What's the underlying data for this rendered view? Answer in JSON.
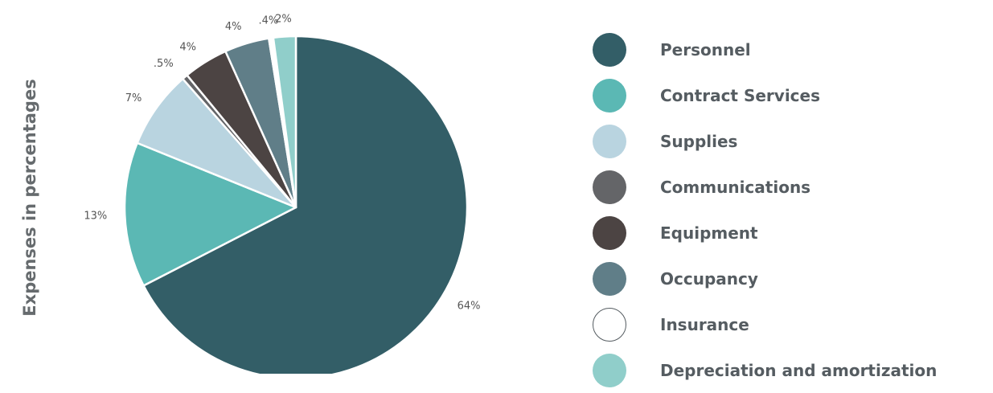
{
  "chart_data": {
    "type": "pie",
    "ylabel": "Expenses in percentages",
    "series": [
      {
        "name": "Personnel",
        "value": 64,
        "label": "64%",
        "color": "#335e67"
      },
      {
        "name": "Contract Services",
        "value": 13,
        "label": "13%",
        "color": "#5bb8b4"
      },
      {
        "name": "Supplies",
        "value": 7,
        "label": "7%",
        "color": "#b9d4e0"
      },
      {
        "name": "Communications",
        "value": 0.5,
        "label": ".5%",
        "color": "#646568"
      },
      {
        "name": "Equipment",
        "value": 4,
        "label": "4%",
        "color": "#4c4443"
      },
      {
        "name": "Occupancy",
        "value": 4,
        "label": "4%",
        "color": "#607e88"
      },
      {
        "name": "Insurance",
        "value": 0.4,
        "label": ".4%",
        "color": "#ffffff"
      },
      {
        "name": "Depreciation and amortization",
        "value": 2,
        "label": "2%",
        "color": "#90ceca"
      }
    ],
    "legend_position": "right"
  }
}
